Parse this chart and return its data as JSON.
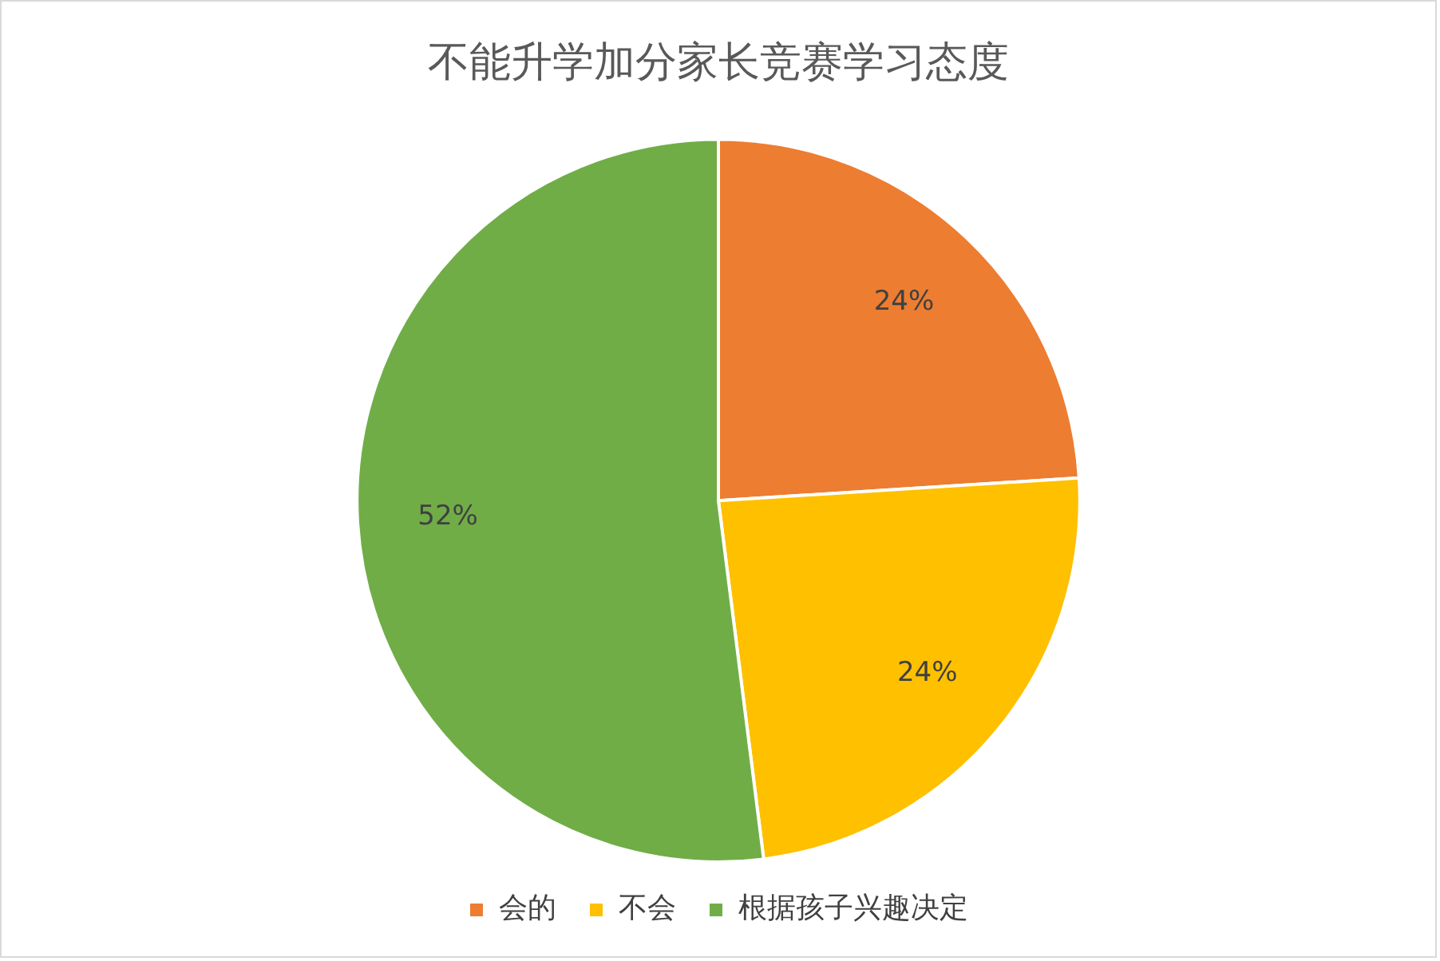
{
  "chart_data": {
    "type": "pie",
    "title": "不能升学加分家长竞赛学习态度",
    "categories": [
      "会的",
      "不会",
      "根据孩子兴趣决定"
    ],
    "values": [
      24,
      24,
      52
    ],
    "value_labels": [
      "24%",
      "24%",
      "52%"
    ],
    "colors": [
      "#ed7d31",
      "#ffc000",
      "#70ad47"
    ],
    "legend": "bottom"
  }
}
